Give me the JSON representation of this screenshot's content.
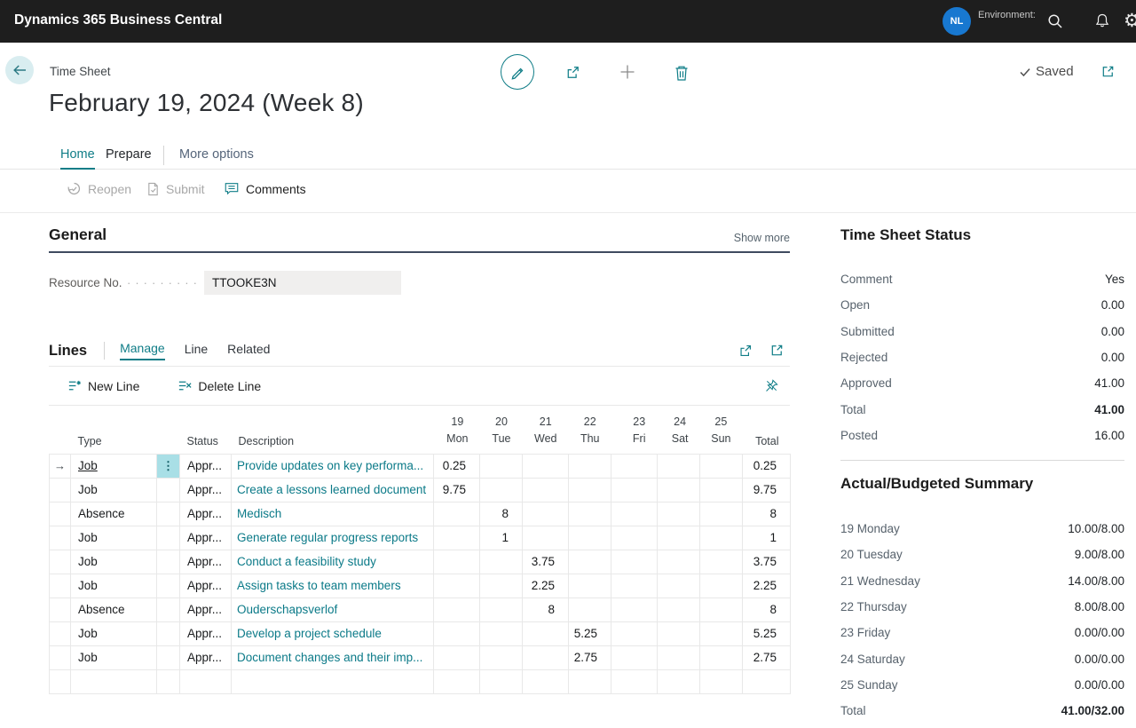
{
  "topbar": {
    "app_title": "Dynamics 365 Business Central",
    "environment_label": "Environment:",
    "avatar_initials": "NL"
  },
  "header": {
    "caption": "Time Sheet",
    "title": "February 19, 2024 (Week 8)",
    "saved_label": "Saved"
  },
  "nav": {
    "tabs": [
      {
        "label": "Home",
        "active": true
      },
      {
        "label": "Prepare",
        "active": false
      },
      {
        "label": "More options",
        "active": false
      }
    ],
    "actions": [
      {
        "label": "Reopen",
        "disabled": true
      },
      {
        "label": "Submit",
        "disabled": true
      },
      {
        "label": "Comments",
        "disabled": false
      }
    ]
  },
  "general": {
    "heading": "General",
    "show_more_label": "Show more",
    "resource_field": {
      "label": "Resource No.",
      "value": "TTOOKE3N"
    }
  },
  "lines": {
    "heading": "Lines",
    "menu": [
      "Manage",
      "Line",
      "Related"
    ],
    "active_menu": "Manage",
    "toolbar": {
      "new_line_label": "New Line",
      "delete_line_label": "Delete Line"
    },
    "table": {
      "headers": {
        "type": "Type",
        "status": "Status",
        "description": "Description",
        "total": "Total"
      },
      "days": [
        {
          "num": "19",
          "name": "Mon"
        },
        {
          "num": "20",
          "name": "Tue"
        },
        {
          "num": "21",
          "name": "Wed"
        },
        {
          "num": "22",
          "name": "Thu"
        },
        {
          "num": "23",
          "name": "Fri"
        },
        {
          "num": "24",
          "name": "Sat"
        },
        {
          "num": "25",
          "name": "Sun"
        }
      ],
      "rows": [
        {
          "selected": true,
          "type": "Job",
          "status": "Appr...",
          "description": "Provide updates on key performa...",
          "days": [
            "0.25",
            "",
            "",
            "",
            "",
            "",
            ""
          ],
          "total": "0.25"
        },
        {
          "selected": false,
          "type": "Job",
          "status": "Appr...",
          "description": "Create a lessons learned document",
          "days": [
            "9.75",
            "",
            "",
            "",
            "",
            "",
            ""
          ],
          "total": "9.75"
        },
        {
          "selected": false,
          "type": "Absence",
          "status": "Appr...",
          "description": "Medisch",
          "days": [
            "",
            "8",
            "",
            "",
            "",
            "",
            ""
          ],
          "total": "8"
        },
        {
          "selected": false,
          "type": "Job",
          "status": "Appr...",
          "description": "Generate regular progress reports",
          "days": [
            "",
            "1",
            "",
            "",
            "",
            "",
            ""
          ],
          "total": "1"
        },
        {
          "selected": false,
          "type": "Job",
          "status": "Appr...",
          "description": "Conduct a feasibility study",
          "days": [
            "",
            "",
            "3.75",
            "",
            "",
            "",
            ""
          ],
          "total": "3.75"
        },
        {
          "selected": false,
          "type": "Job",
          "status": "Appr...",
          "description": "Assign tasks to team members",
          "days": [
            "",
            "",
            "2.25",
            "",
            "",
            "",
            ""
          ],
          "total": "2.25"
        },
        {
          "selected": false,
          "type": "Absence",
          "status": "Appr...",
          "description": "Ouderschapsverlof",
          "days": [
            "",
            "",
            "8",
            "",
            "",
            "",
            ""
          ],
          "total": "8"
        },
        {
          "selected": false,
          "type": "Job",
          "status": "Appr...",
          "description": "Develop a project schedule",
          "days": [
            "",
            "",
            "",
            "5.25",
            "",
            "",
            ""
          ],
          "total": "5.25"
        },
        {
          "selected": false,
          "type": "Job",
          "status": "Appr...",
          "description": "Document changes and their imp...",
          "days": [
            "",
            "",
            "",
            "2.75",
            "",
            "",
            ""
          ],
          "total": "2.75"
        },
        {
          "selected": false,
          "type": "",
          "status": "",
          "description": "",
          "days": [
            "",
            "",
            "",
            "",
            "",
            "",
            ""
          ],
          "total": ""
        }
      ]
    }
  },
  "factbox": {
    "status": {
      "heading": "Time Sheet Status",
      "rows": [
        {
          "label": "Comment",
          "value": "Yes"
        },
        {
          "label": "Open",
          "value": "0.00"
        },
        {
          "label": "Submitted",
          "value": "0.00"
        },
        {
          "label": "Rejected",
          "value": "0.00"
        },
        {
          "label": "Approved",
          "value": "41.00"
        },
        {
          "label": "Total",
          "value": "41.00",
          "bold": true
        },
        {
          "label": "Posted",
          "value": "16.00"
        }
      ]
    },
    "summary": {
      "heading": "Actual/Budgeted Summary",
      "rows": [
        {
          "label": "19 Monday",
          "value": "10.00/8.00"
        },
        {
          "label": "20 Tuesday",
          "value": "9.00/8.00"
        },
        {
          "label": "21 Wednesday",
          "value": "14.00/8.00"
        },
        {
          "label": "22 Thursday",
          "value": "8.00/8.00"
        },
        {
          "label": "23 Friday",
          "value": "0.00/0.00"
        },
        {
          "label": "24 Saturday",
          "value": "0.00/0.00"
        },
        {
          "label": "25 Sunday",
          "value": "0.00/0.00"
        },
        {
          "label": "Total",
          "value": "41.00/32.00",
          "bold": true
        }
      ]
    }
  },
  "colors": {
    "topbar_bg": "#1e1e1e",
    "accent_teal": "#0f7d87",
    "link_teal": "#0b7a88",
    "selected_cell": "#a9dfe6",
    "section_rule": "#3f4b5f",
    "avatar_blue": "#1878d0"
  }
}
